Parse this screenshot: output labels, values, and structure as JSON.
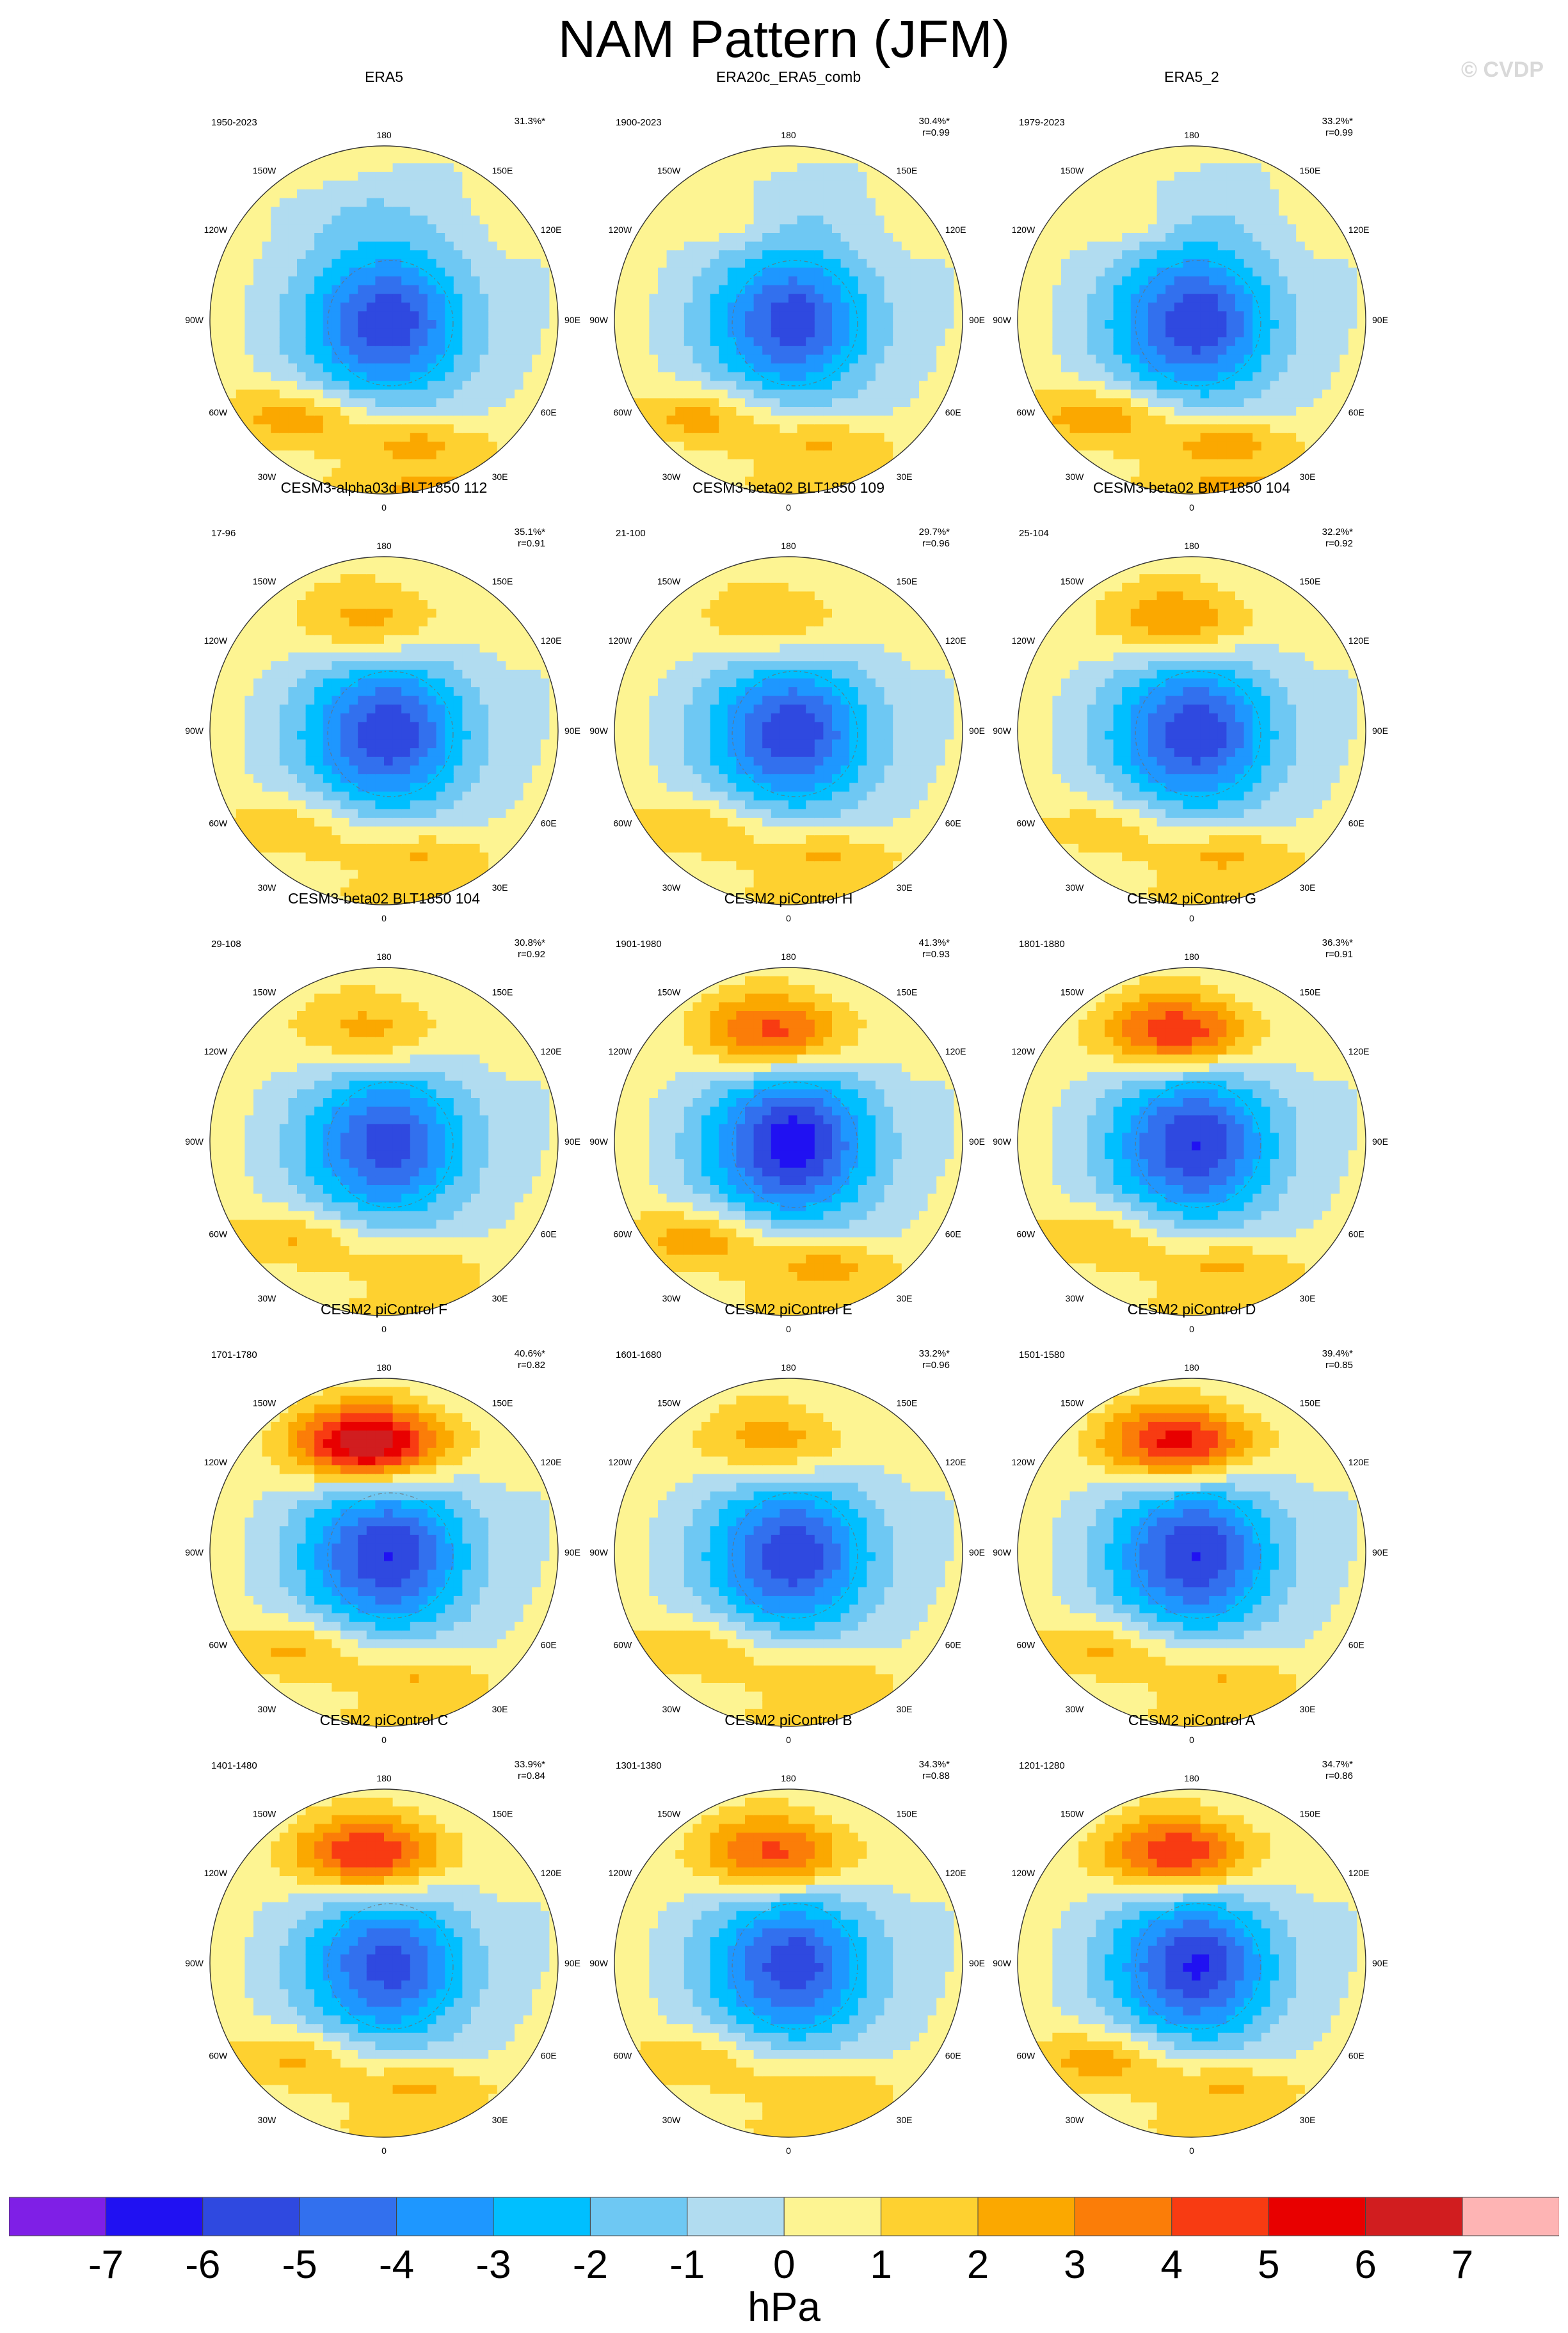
{
  "title": "NAM Pattern (JFM)",
  "watermark": "© CVDP",
  "colors": {
    "levels": [
      {
        "lo": -8,
        "hi": -7,
        "color": "#7f1fe6"
      },
      {
        "lo": -7,
        "hi": -6,
        "color": "#2011f2"
      },
      {
        "lo": -6,
        "hi": -5,
        "color": "#2f49e0"
      },
      {
        "lo": -5,
        "hi": -4,
        "color": "#3270ee"
      },
      {
        "lo": -4,
        "hi": -3,
        "color": "#1e97ff"
      },
      {
        "lo": -3,
        "hi": -2,
        "color": "#00bfff"
      },
      {
        "lo": -2,
        "hi": -1,
        "color": "#6ec8f3"
      },
      {
        "lo": -1,
        "hi": 0,
        "color": "#b1dcf0"
      },
      {
        "lo": 0,
        "hi": 1,
        "color": "#fdf492"
      },
      {
        "lo": 1,
        "hi": 2,
        "color": "#fed130"
      },
      {
        "lo": 2,
        "hi": 3,
        "color": "#fba800"
      },
      {
        "lo": 3,
        "hi": 4,
        "color": "#fb7d08"
      },
      {
        "lo": 4,
        "hi": 5,
        "color": "#f83b12"
      },
      {
        "lo": 5,
        "hi": 6,
        "color": "#e80000"
      },
      {
        "lo": 6,
        "hi": 7,
        "color": "#d11d1f"
      },
      {
        "lo": 7,
        "hi": 8,
        "color": "#feb4b4"
      }
    ]
  },
  "map_labels": {
    "lon": [
      "180",
      "150E",
      "120E",
      "90E",
      "60E",
      "30E",
      "0",
      "30W",
      "60W",
      "90W",
      "120W",
      "150W"
    ]
  },
  "chart_data": [
    {
      "type": "heatmap",
      "title": "ERA5",
      "years": "1950-2023",
      "pct": "31.3%*",
      "r": "",
      "features": {
        "pac": -0.8,
        "pacSign": -1,
        "ak": 0,
        "arc": -5.6,
        "arcPeak": -6.2,
        "atl": 2.7,
        "eur": 2.5,
        "ant": 2.2
      }
    },
    {
      "type": "heatmap",
      "title": "ERA20c_ERA5_comb",
      "years": "1900-2023",
      "pct": "30.4%*",
      "r": "r=0.99",
      "features": {
        "pac": -0.8,
        "pacSign": -1,
        "ak": 1.4,
        "arc": -5.3,
        "arcPeak": -6.1,
        "atl": 2.5,
        "eur": 2.2,
        "ant": 1.5
      }
    },
    {
      "type": "heatmap",
      "title": "ERA5_2",
      "years": "1979-2023",
      "pct": "33.2%*",
      "r": "r=0.99",
      "features": {
        "pac": -0.9,
        "pacSign": -1,
        "ak": 1.6,
        "arc": -5.7,
        "arcPeak": -6.3,
        "atl": 2.9,
        "eur": 2.7,
        "ant": 2.2
      }
    },
    {
      "type": "heatmap",
      "title": "CESM3-alpha03d BLT1850 112",
      "years": "17-96",
      "pct": "35.1%*",
      "r": "r=0.91",
      "features": {
        "pac": 2.6,
        "pacSign": 1,
        "ak": 0,
        "arc": -5.7,
        "arcPeak": -6.3,
        "atl": 1.9,
        "eur": 2.2,
        "ant": 1.6
      }
    },
    {
      "type": "heatmap",
      "title": "CESM3-beta02 BLT1850 109",
      "years": "21-100",
      "pct": "29.7%*",
      "r": "r=0.96",
      "features": {
        "pac": 2.2,
        "pacSign": 1,
        "ak": 0,
        "arc": -5.6,
        "arcPeak": -6.2,
        "atl": 2.1,
        "eur": 2.3,
        "ant": 1.5
      }
    },
    {
      "type": "heatmap",
      "title": "CESM3-beta02 BMT1850 104",
      "years": "25-104",
      "pct": "32.2%*",
      "r": "r=0.92",
      "features": {
        "pac": 3.2,
        "pacSign": 1,
        "ak": 0,
        "arc": -5.7,
        "arcPeak": -6.3,
        "atl": 1.8,
        "eur": 2.4,
        "ant": 1.5
      }
    },
    {
      "type": "heatmap",
      "title": "CESM3-beta02 BLT1850 104",
      "years": "29-108",
      "pct": "30.8%*",
      "r": "r=0.92",
      "features": {
        "pac": 2.6,
        "pacSign": 1,
        "ak": 0,
        "arc": -5.4,
        "arcPeak": -6.0,
        "atl": 2.2,
        "eur": 1.9,
        "ant": 1.5
      }
    },
    {
      "type": "heatmap",
      "title": "CESM2 piControl H",
      "years": "1901-1980",
      "pct": "41.3%*",
      "r": "r=0.93",
      "features": {
        "pac": 4.7,
        "pacSign": 1,
        "ak": 0,
        "arc": -6.4,
        "arcPeak": -7.2,
        "atl": 2.8,
        "eur": 2.7,
        "ant": 1.6
      }
    },
    {
      "type": "heatmap",
      "title": "CESM2 piControl G",
      "years": "1801-1880",
      "pct": "36.3%*",
      "r": "r=0.91",
      "features": {
        "pac": 5.2,
        "pacSign": 1,
        "ak": 0,
        "arc": -5.9,
        "arcPeak": -6.4,
        "atl": 2.2,
        "eur": 2.4,
        "ant": 1.6
      }
    },
    {
      "type": "heatmap",
      "title": "CESM2 piControl F",
      "years": "1701-1780",
      "pct": "40.6%*",
      "r": "r=0.82",
      "features": {
        "pac": 7.4,
        "pacSign": 1,
        "ak": 0,
        "arc": -5.9,
        "arcPeak": -6.4,
        "atl": 2.4,
        "eur": 2.2,
        "ant": 1.5
      }
    },
    {
      "type": "heatmap",
      "title": "CESM2 piControl E",
      "years": "1601-1680",
      "pct": "33.2%*",
      "r": "r=0.96",
      "features": {
        "pac": 2.8,
        "pacSign": 1,
        "ak": 0,
        "arc": -5.7,
        "arcPeak": -6.3,
        "atl": 2.1,
        "eur": 2.1,
        "ant": 1.5
      }
    },
    {
      "type": "heatmap",
      "title": "CESM2 piControl D",
      "years": "1501-1580",
      "pct": "39.4%*",
      "r": "r=0.85",
      "features": {
        "pac": 5.8,
        "pacSign": 1,
        "ak": 0,
        "arc": -5.9,
        "arcPeak": -6.4,
        "atl": 2.3,
        "eur": 2.2,
        "ant": 1.6
      }
    },
    {
      "type": "heatmap",
      "title": "CESM2 piControl C",
      "years": "1401-1480",
      "pct": "33.9%*",
      "r": "r=0.84",
      "features": {
        "pac": 5.4,
        "pacSign": 1,
        "ak": 0,
        "arc": -5.3,
        "arcPeak": -5.9,
        "atl": 2.3,
        "eur": 2.3,
        "ant": 1.6
      }
    },
    {
      "type": "heatmap",
      "title": "CESM2 piControl B",
      "years": "1301-1380",
      "pct": "34.3%*",
      "r": "r=0.88",
      "features": {
        "pac": 4.6,
        "pacSign": 1,
        "ak": 0,
        "arc": -5.5,
        "arcPeak": -6.1,
        "atl": 2.0,
        "eur": 2.1,
        "ant": 1.5
      }
    },
    {
      "type": "heatmap",
      "title": "CESM2 piControl A",
      "years": "1201-1280",
      "pct": "34.7%*",
      "r": "r=0.86",
      "features": {
        "pac": 5.3,
        "pacSign": 1,
        "ak": 0,
        "arc": -5.8,
        "arcPeak": -6.6,
        "atl": 2.7,
        "eur": 2.3,
        "ant": 1.6
      }
    }
  ],
  "colorbar": {
    "ticks": [
      "-7",
      "-6",
      "-5",
      "-4",
      "-3",
      "-2",
      "-1",
      "0",
      "1",
      "2",
      "3",
      "4",
      "5",
      "6",
      "7"
    ],
    "unit": "hPa"
  }
}
